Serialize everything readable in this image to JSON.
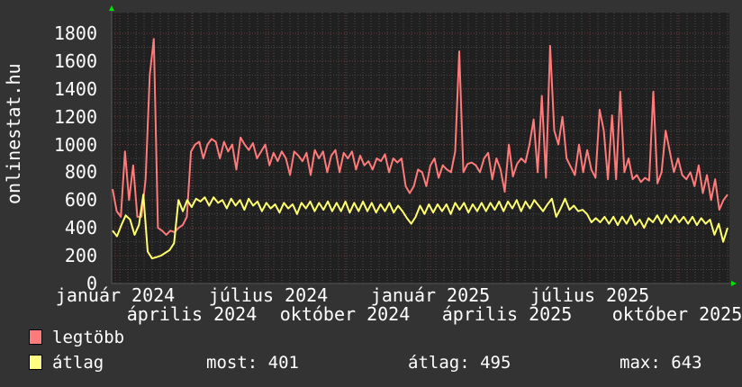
{
  "chart_data": {
    "type": "line",
    "title": "",
    "ylabel": "onlinestat.hu",
    "ylim": [
      0,
      1800
    ],
    "yticks": [
      "0",
      "200",
      "400",
      "600",
      "800",
      "1000",
      "1200",
      "1400",
      "1600",
      "1800"
    ],
    "xticks": [
      "január 2024",
      "április 2024",
      "július 2024",
      "október 2024",
      "január 2025",
      "április 2025",
      "július 2025",
      "október 2025"
    ],
    "grid": true,
    "series": [
      {
        "name": "legtöbb",
        "color": "#ff7a7a",
        "values": [
          680,
          520,
          480,
          950,
          600,
          850,
          480,
          480,
          750,
          1500,
          1760,
          400,
          380,
          350,
          380,
          370,
          400,
          420,
          480,
          950,
          1000,
          1020,
          900,
          1000,
          1040,
          1020,
          900,
          1020,
          950,
          1000,
          820,
          1050,
          1000,
          960,
          1010,
          900,
          950,
          1000,
          850,
          940,
          880,
          950,
          900,
          780,
          950,
          920,
          880,
          940,
          780,
          960,
          900,
          950,
          800,
          920,
          960,
          800,
          940,
          900,
          950,
          820,
          920,
          850,
          880,
          820,
          900,
          880,
          930,
          800,
          900,
          870,
          900,
          700,
          650,
          700,
          820,
          800,
          700,
          850,
          900,
          760,
          850,
          820,
          800,
          950,
          1670,
          800,
          860,
          870,
          850,
          800,
          900,
          940,
          750,
          900,
          820,
          660,
          1000,
          770,
          860,
          900,
          870,
          1000,
          1180,
          800,
          1350,
          760,
          1710,
          1100,
          1000,
          1200,
          900,
          840,
          780,
          1000,
          800,
          960,
          820,
          760,
          1250,
          1100,
          750,
          1210,
          750,
          1380,
          800,
          900,
          750,
          780,
          730,
          760,
          740,
          1380,
          720,
          800,
          1100,
          950,
          800,
          900,
          780,
          750,
          800,
          700,
          850,
          650,
          780,
          600,
          750,
          530,
          600,
          640
        ]
      },
      {
        "name": "átlag",
        "color": "#ffff70",
        "values": [
          380,
          340,
          420,
          490,
          460,
          350,
          420,
          640,
          230,
          180,
          190,
          200,
          220,
          240,
          290,
          600,
          520,
          600,
          550,
          610,
          590,
          620,
          560,
          620,
          580,
          600,
          540,
          610,
          560,
          600,
          530,
          610,
          560,
          590,
          520,
          580,
          540,
          570,
          510,
          580,
          540,
          570,
          500,
          580,
          540,
          590,
          520,
          580,
          530,
          590,
          520,
          580,
          520,
          590,
          510,
          580,
          520,
          590,
          520,
          580,
          510,
          570,
          520,
          580,
          510,
          560,
          520,
          470,
          430,
          480,
          560,
          500,
          570,
          510,
          570,
          520,
          570,
          500,
          580,
          530,
          580,
          510,
          570,
          520,
          580,
          520,
          580,
          530,
          590,
          520,
          590,
          540,
          600,
          520,
          590,
          540,
          600,
          560,
          520,
          570,
          610,
          480,
          540,
          610,
          530,
          560,
          520,
          530,
          500,
          440,
          470,
          440,
          480,
          430,
          480,
          420,
          480,
          430,
          490,
          420,
          460,
          400,
          470,
          440,
          490,
          430,
          490,
          440,
          490,
          440,
          480,
          430,
          480,
          420,
          470,
          430,
          460,
          350,
          430,
          300,
          400
        ]
      }
    ]
  },
  "legend": {
    "series1": "legtöbb",
    "series2": "átlag",
    "most": "most: 401",
    "avg": "átlag: 495",
    "max": "max: 643"
  }
}
